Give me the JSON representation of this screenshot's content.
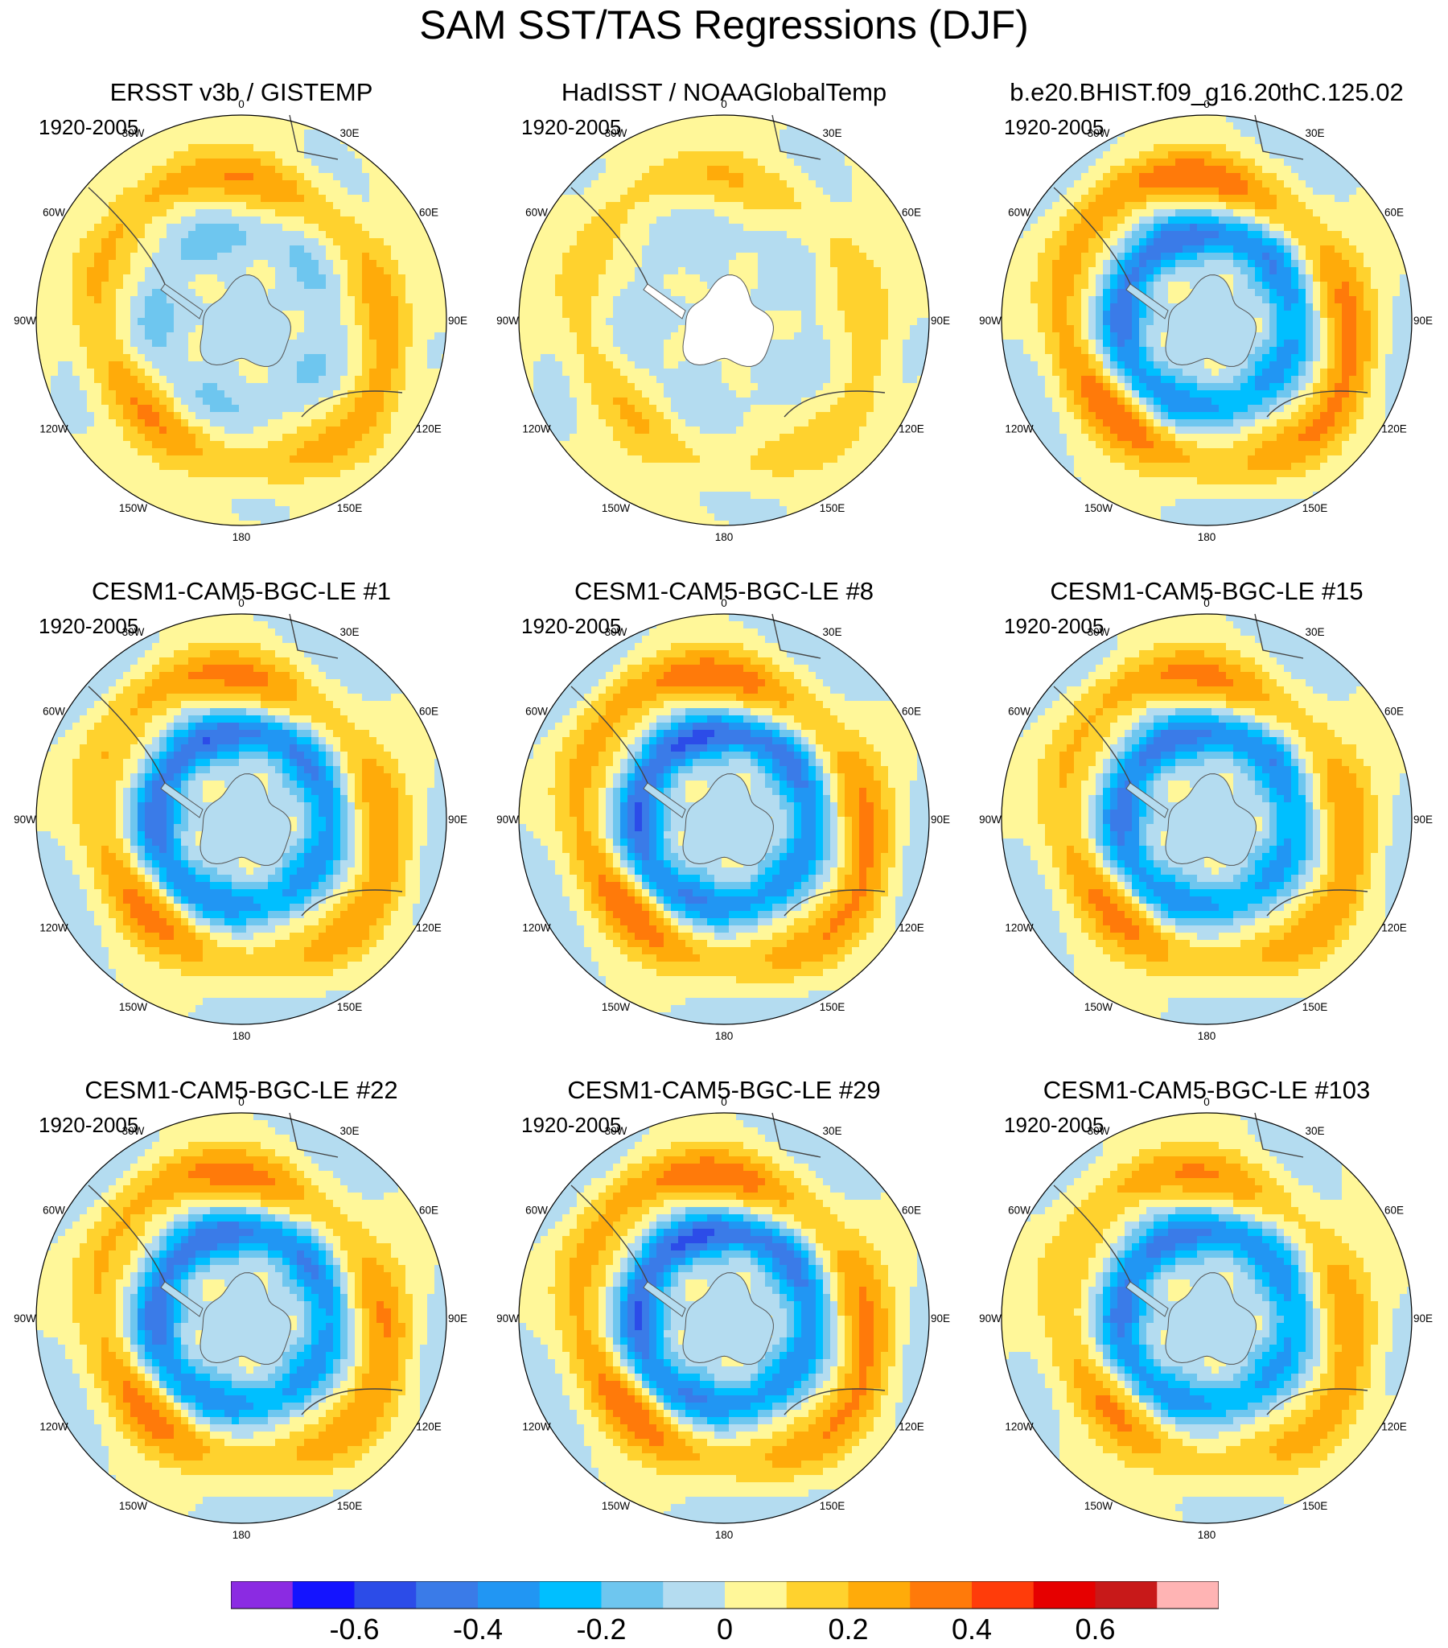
{
  "figure": {
    "title": "SAM SST/TAS Regressions (DJF)"
  },
  "chart_data": {
    "type": "polar-map-contour",
    "title": "SAM SST/TAS Regressions (DJF)",
    "projection": "south polar stereographic",
    "longitude_labels": [
      "0",
      "30E",
      "60E",
      "90E",
      "120E",
      "150E",
      "180",
      "150W",
      "120W",
      "90W",
      "60W",
      "30W"
    ],
    "panels": [
      {
        "title": "ERSST v3b / GISTEMP",
        "period": "1920-2005",
        "ring_amp": 0.05,
        "ring_base": 0.23,
        "inner": -0.12,
        "outer": 0.12,
        "missing_pole": false
      },
      {
        "title": "HadISST / NOAAGlobalTemp",
        "period": "1920-2005",
        "ring_amp": 0.03,
        "ring_base": 0.15,
        "inner": -0.06,
        "outer": 0.1,
        "missing_pole": true
      },
      {
        "title": "b.e20.BHIST.f09_g16.20thC.125.02",
        "period": "1920-2005",
        "ring_amp": 0.08,
        "ring_base": 0.28,
        "inner": -0.45,
        "outer": -0.06,
        "missing_pole": false
      },
      {
        "title": "CESM1-CAM5-BGC-LE #1",
        "period": "1920-2005",
        "ring_amp": 0.08,
        "ring_base": 0.24,
        "inner": -0.47,
        "outer": -0.08,
        "missing_pole": false
      },
      {
        "title": "CESM1-CAM5-BGC-LE #8",
        "period": "1920-2005",
        "ring_amp": 0.08,
        "ring_base": 0.27,
        "inner": -0.5,
        "outer": -0.1,
        "missing_pole": false
      },
      {
        "title": "CESM1-CAM5-BGC-LE #15",
        "period": "1920-2005",
        "ring_amp": 0.07,
        "ring_base": 0.24,
        "inner": -0.44,
        "outer": -0.05,
        "missing_pole": false
      },
      {
        "title": "CESM1-CAM5-BGC-LE #22",
        "period": "1920-2005",
        "ring_amp": 0.08,
        "ring_base": 0.25,
        "inner": -0.46,
        "outer": -0.07,
        "missing_pole": false
      },
      {
        "title": "CESM1-CAM5-BGC-LE #29",
        "period": "1920-2005",
        "ring_amp": 0.08,
        "ring_base": 0.27,
        "inner": -0.5,
        "outer": -0.09,
        "missing_pole": false
      },
      {
        "title": "CESM1-CAM5-BGC-LE #103",
        "period": "1920-2005",
        "ring_amp": 0.07,
        "ring_base": 0.22,
        "inner": -0.43,
        "outer": 0.02,
        "missing_pole": false
      }
    ],
    "colorbar": {
      "levels": [
        -0.7,
        -0.6,
        -0.5,
        -0.4,
        -0.3,
        -0.2,
        -0.1,
        0,
        0.1,
        0.2,
        0.3,
        0.4,
        0.5,
        0.6,
        0.7
      ],
      "colors": [
        "#8b2be2",
        "#1414ff",
        "#2c4ce8",
        "#3a7be8",
        "#2196f3",
        "#00bfff",
        "#6ec6ef",
        "#b4dcf0",
        "#fff799",
        "#ffd22e",
        "#ffab0a",
        "#ff7a0a",
        "#ff3c0a",
        "#e60000",
        "#c81919",
        "#ffb4b4"
      ],
      "tick_labels": [
        "-0.6",
        "-0.4",
        "-0.2",
        "0",
        "0.2",
        "0.4",
        "0.6"
      ],
      "tick_values": [
        -0.6,
        -0.4,
        -0.2,
        0,
        0.2,
        0.4,
        0.6
      ]
    }
  }
}
